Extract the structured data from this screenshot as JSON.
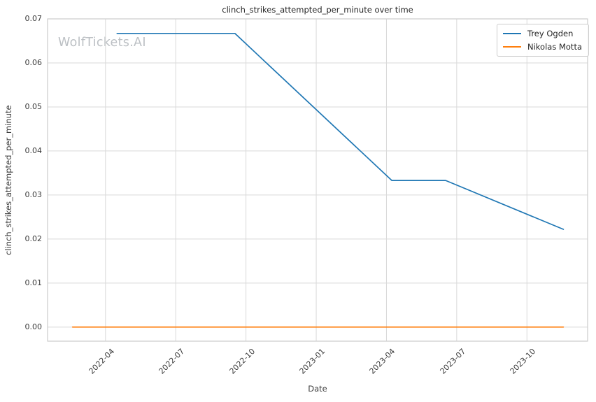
{
  "chart_data": {
    "type": "line",
    "title": "clinch_strikes_attempted_per_minute over time",
    "xlabel": "Date",
    "ylabel": "clinch_strikes_attempted_per_minute",
    "watermark": "WolfTickets.AI",
    "grid": true,
    "legend_position": "upper right",
    "x_tick_labels": [
      "2022-04",
      "2022-07",
      "2022-10",
      "2023-01",
      "2023-04",
      "2023-07",
      "2023-10"
    ],
    "y_tick_labels": [
      "0.00",
      "0.01",
      "0.02",
      "0.03",
      "0.04",
      "0.05",
      "0.06",
      "0.07"
    ],
    "y_tick_values": [
      0.0,
      0.01,
      0.02,
      0.03,
      0.04,
      0.05,
      0.06,
      0.07
    ],
    "xlim": [
      "2022-01-17",
      "2023-12-19"
    ],
    "ylim": [
      -0.0032,
      0.07
    ],
    "series": [
      {
        "name": "Trey Ogden",
        "color": "#1f77b4",
        "x": [
          "2022-04-16",
          "2022-09-17",
          "2023-04-08",
          "2023-06-17",
          "2023-11-18"
        ],
        "values": [
          0.0667,
          0.0667,
          0.0333,
          0.0333,
          0.0222
        ]
      },
      {
        "name": "Nikolas Motta",
        "color": "#ff7f0e",
        "x": [
          "2022-02-19",
          "2023-11-18"
        ],
        "values": [
          0.0,
          0.0
        ]
      }
    ]
  },
  "colors": {
    "background": "#ffffff",
    "grid": "#d9d9d9",
    "spine": "#cccccc",
    "title_text": "#262626",
    "tick_text": "#3b3b3b",
    "watermark": "#bcc0c4",
    "series_blue": "#1f77b4",
    "series_orange": "#ff7f0e"
  }
}
